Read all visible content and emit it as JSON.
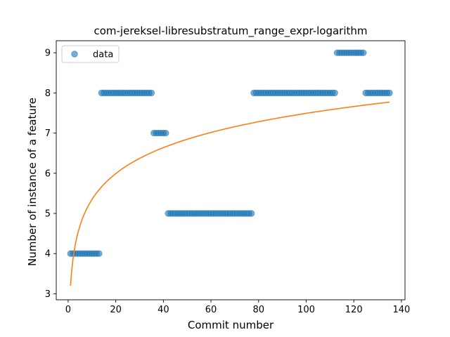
{
  "chart_data": {
    "type": "scatter",
    "title": "com-jereksel-libresubstratum_range_expr-logarithm",
    "xlabel": "Commit number",
    "ylabel": "Number of instance of a feature",
    "xlim": [
      -5,
      141.5
    ],
    "ylim": [
      2.85,
      9.3
    ],
    "xticks": [
      0,
      20,
      40,
      60,
      80,
      100,
      120,
      140
    ],
    "yticks": [
      3,
      4,
      5,
      6,
      7,
      8,
      9
    ],
    "grid": false,
    "legend": {
      "placement": "top-left",
      "entries": [
        "data"
      ]
    },
    "colors": {
      "data": "#1f77b4",
      "fit": "#ff7f0e"
    },
    "series": [
      {
        "name": "data",
        "kind": "scatter",
        "segments": [
          {
            "x_start": 1,
            "x_end": 13,
            "y": 4
          },
          {
            "x_start": 14,
            "x_end": 35,
            "y": 8
          },
          {
            "x_start": 36,
            "x_end": 41,
            "y": 7
          },
          {
            "x_start": 42,
            "x_end": 77,
            "y": 5
          },
          {
            "x_start": 78,
            "x_end": 112,
            "y": 8
          },
          {
            "x_start": 113,
            "x_end": 124,
            "y": 9
          },
          {
            "x_start": 125,
            "x_end": 135,
            "y": 8
          }
        ]
      },
      {
        "kind": "line",
        "model": "logarithmic",
        "a": 3.2,
        "b": 0.932,
        "x_range": [
          1,
          135
        ]
      }
    ]
  }
}
